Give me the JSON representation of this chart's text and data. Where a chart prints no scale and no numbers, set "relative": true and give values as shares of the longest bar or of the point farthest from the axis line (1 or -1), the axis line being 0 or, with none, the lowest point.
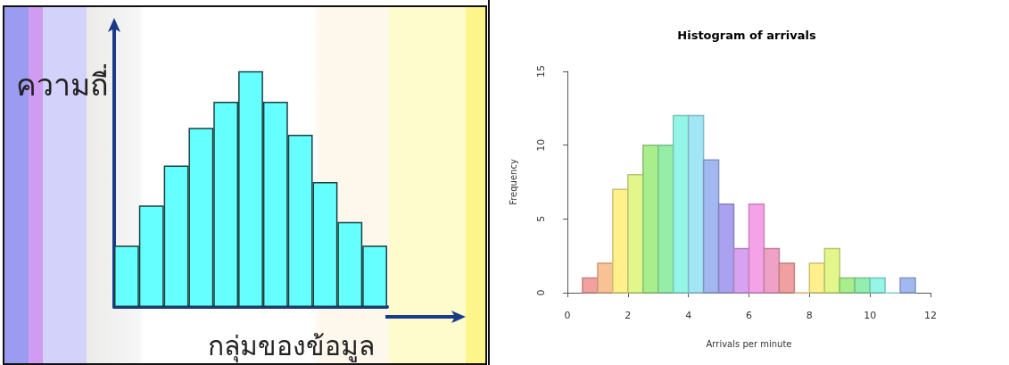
{
  "chart_data": [
    {
      "type": "bar",
      "xlabel": "กลุ่มของข้อมูล",
      "ylabel": "ความถี่",
      "categories": [
        null,
        null,
        null,
        null,
        null,
        null,
        null,
        null,
        null,
        null,
        null
      ],
      "values": [
        0.26,
        0.43,
        0.6,
        0.76,
        0.87,
        1,
        0.87,
        0.73,
        0.53,
        0.36,
        0.26
      ],
      "color": "#66ffff",
      "relative": true
    },
    {
      "type": "histogram",
      "title": "Histogram of arrivals",
      "xlabel": "Arrivals per minute",
      "ylabel": "Frequency",
      "bins": [
        0.5,
        1,
        1.5,
        2,
        2.5,
        3,
        3.5,
        4,
        4.5,
        5,
        5.5,
        6,
        6.5,
        7,
        7.5,
        8,
        8.5,
        9,
        9.5,
        10,
        10.5,
        11,
        11.5
      ],
      "values": [
        1,
        2,
        7,
        8,
        10,
        10,
        12,
        12,
        9,
        6,
        3,
        6,
        3,
        2,
        0,
        2,
        3,
        1,
        1,
        1,
        0,
        1
      ],
      "colors": [
        "#f2a0a0",
        "#f8c296",
        "#fff08c",
        "#e2f68c",
        "#a8ee8c",
        "#94eea6",
        "#94f6e6",
        "#a2e6f6",
        "#a2b8f0",
        "#aaa2f0",
        "#d8a2f0",
        "#f6a2e8",
        "#f0a2c6",
        "#f0a0a0",
        "#f8c296",
        "#fff08c",
        "#e2f68c",
        "#a8ee8c",
        "#94eeb0",
        "#94f6e6",
        "#a2e2f6",
        "#a2b8f0"
      ],
      "xlim": [
        0,
        12
      ],
      "xticks": [
        0,
        2,
        4,
        6,
        8,
        10,
        12
      ],
      "ylim": [
        0,
        15
      ],
      "yticks": [
        0,
        5,
        10,
        15
      ]
    }
  ]
}
